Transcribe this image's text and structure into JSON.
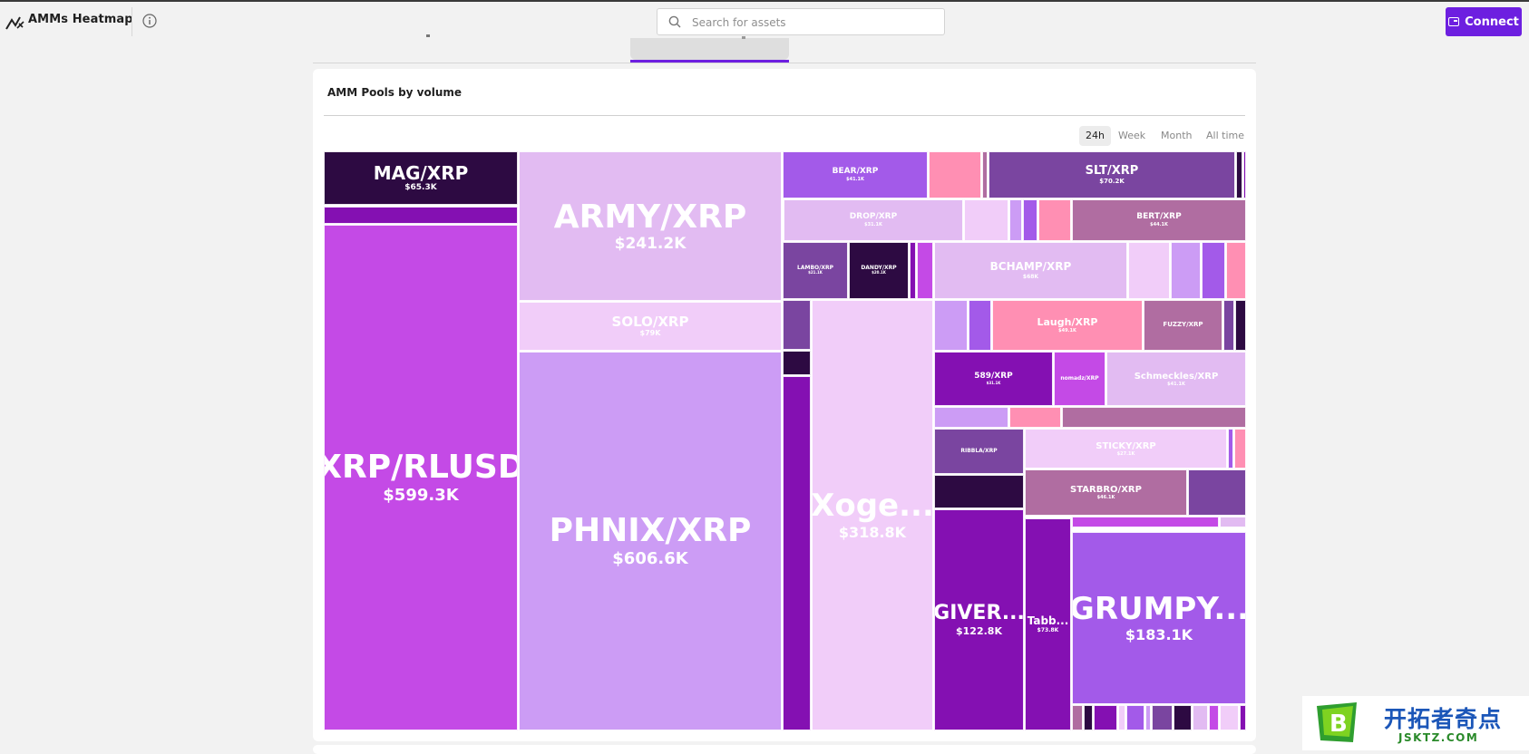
{
  "header": {
    "app_title": "AMMs Heatmap",
    "search_placeholder": "Search for assets",
    "connect_label": "Connect"
  },
  "card": {
    "title": "AMM Pools by volume",
    "time_ranges": [
      "24h",
      "Week",
      "Month",
      "All time"
    ],
    "selected_range": "24h"
  },
  "colors": {
    "accent": "#6d1fe0",
    "dark": "#2d0a42",
    "purple": "#c44ae6",
    "violet": "#a35ae9",
    "lavender": "#cc9cf5",
    "pale_lavender": "#e2bbf2",
    "light_pink": "#f1cdf9",
    "pink": "#ff8fb3",
    "plum": "#b06da1",
    "deep_violet": "#7a45a0",
    "deep_purple": "#8410b2"
  },
  "chart_data": {
    "type": "treemap",
    "title": "AMM Pools by volume",
    "period": "24h",
    "unit": "USD",
    "pools": [
      {
        "id": "mag",
        "name": "MAG/XRP",
        "value": "$65.3K",
        "color": "#2d0a42"
      },
      {
        "id": "p1",
        "name": "",
        "value": "",
        "color": "#8410b2"
      },
      {
        "id": "xrprlusd",
        "name": "XRP/RLUSD",
        "value": "$599.3K",
        "color": "#c44ae6"
      },
      {
        "id": "army",
        "name": "ARMY/XRP",
        "value": "$241.2K",
        "color": "#e2bbf2"
      },
      {
        "id": "solo",
        "name": "SOLO/XRP",
        "value": "$79K",
        "color": "#f1cdf9"
      },
      {
        "id": "phnix",
        "name": "PHNIX/XRP",
        "value": "$606.6K",
        "color": "#cc9cf5"
      },
      {
        "id": "bear",
        "name": "BEAR/XRP",
        "value": "$41.1K",
        "color": "#a35ae9"
      },
      {
        "id": "p2",
        "name": "",
        "value": "",
        "color": "#ff8fb3"
      },
      {
        "id": "p3",
        "name": "",
        "value": "",
        "color": "#b06da1"
      },
      {
        "id": "slt",
        "name": "SLT/XRP",
        "value": "$70.2K",
        "color": "#7a45a0"
      },
      {
        "id": "p4",
        "name": "",
        "value": "",
        "color": "#2d0a42"
      },
      {
        "id": "p5",
        "name": "",
        "value": "",
        "color": "#8410b2"
      },
      {
        "id": "drop",
        "name": "DROP/XRP",
        "value": "$31.1K",
        "color": "#e2bbf2"
      },
      {
        "id": "p6",
        "name": "",
        "value": "",
        "color": "#f1cdf9"
      },
      {
        "id": "p7",
        "name": "",
        "value": "",
        "color": "#cc9cf5"
      },
      {
        "id": "p8",
        "name": "",
        "value": "",
        "color": "#a35ae9"
      },
      {
        "id": "p9",
        "name": "",
        "value": "",
        "color": "#ff8fb3"
      },
      {
        "id": "bert",
        "name": "BERT/XRP",
        "value": "$44.1K",
        "color": "#b06da1"
      },
      {
        "id": "lambo",
        "name": "LAMBO/XRP",
        "value": "$21.1K",
        "color": "#7a45a0"
      },
      {
        "id": "dandy",
        "name": "DANDY/XRP",
        "value": "$20.1K",
        "color": "#2d0a42"
      },
      {
        "id": "p10",
        "name": "",
        "value": "",
        "color": "#8410b2"
      },
      {
        "id": "p11",
        "name": "",
        "value": "",
        "color": "#c44ae6"
      },
      {
        "id": "bchamp",
        "name": "BCHAMP/XRP",
        "value": "$68K",
        "color": "#e2bbf2"
      },
      {
        "id": "p12",
        "name": "",
        "value": "",
        "color": "#f1cdf9"
      },
      {
        "id": "p13",
        "name": "",
        "value": "",
        "color": "#cc9cf5"
      },
      {
        "id": "p14",
        "name": "",
        "value": "",
        "color": "#a35ae9"
      },
      {
        "id": "p15",
        "name": "",
        "value": "",
        "color": "#ff8fb3"
      },
      {
        "id": "p16",
        "name": "",
        "value": "",
        "color": "#7a45a0"
      },
      {
        "id": "p17",
        "name": "",
        "value": "",
        "color": "#2d0a42"
      },
      {
        "id": "p18",
        "name": "",
        "value": "",
        "color": "#8410b2"
      },
      {
        "id": "xoge",
        "name": "Xoge...",
        "value": "$318.8K",
        "color": "#f1cdf9"
      },
      {
        "id": "p19",
        "name": "",
        "value": "",
        "color": "#cc9cf5"
      },
      {
        "id": "p20",
        "name": "",
        "value": "",
        "color": "#a35ae9"
      },
      {
        "id": "laugh",
        "name": "Laugh/XRP",
        "value": "$49.1K",
        "color": "#ff8fb3"
      },
      {
        "id": "fuzzy",
        "name": "FUZZY/XRP",
        "value": "",
        "color": "#b06da1"
      },
      {
        "id": "p21",
        "name": "",
        "value": "",
        "color": "#7a45a0"
      },
      {
        "id": "p22",
        "name": "",
        "value": "",
        "color": "#2d0a42"
      },
      {
        "id": "589",
        "name": "589/XRP",
        "value": "$31.1K",
        "color": "#8410b2"
      },
      {
        "id": "nomadz",
        "name": "nomadz/XRP",
        "value": "",
        "color": "#c44ae6"
      },
      {
        "id": "schmeckles",
        "name": "Schmeckles/XRP",
        "value": "$41.1K",
        "color": "#e2bbf2"
      },
      {
        "id": "p23",
        "name": "",
        "value": "",
        "color": "#cc9cf5"
      },
      {
        "id": "p24",
        "name": "",
        "value": "",
        "color": "#ff8fb3"
      },
      {
        "id": "p25",
        "name": "",
        "value": "",
        "color": "#b06da1"
      },
      {
        "id": "ribbla",
        "name": "RIBBLA/XRP",
        "value": "",
        "color": "#7a45a0"
      },
      {
        "id": "sticky",
        "name": "STICKY/XRP",
        "value": "$27.1K",
        "color": "#f1cdf9"
      },
      {
        "id": "p26",
        "name": "",
        "value": "",
        "color": "#a35ae9"
      },
      {
        "id": "p27",
        "name": "",
        "value": "",
        "color": "#ff8fb3"
      },
      {
        "id": "p28",
        "name": "",
        "value": "",
        "color": "#2d0a42"
      },
      {
        "id": "starbro",
        "name": "STARBRO/XRP",
        "value": "$46.1K",
        "color": "#b06da1"
      },
      {
        "id": "p29",
        "name": "",
        "value": "",
        "color": "#7a45a0"
      },
      {
        "id": "giver",
        "name": "GIVER...",
        "value": "$122.8K",
        "color": "#8410b2"
      },
      {
        "id": "tabb",
        "name": "Tabb...",
        "value": "$73.8K",
        "color": "#8410b2"
      },
      {
        "id": "p30",
        "name": "",
        "value": "",
        "color": "#c44ae6"
      },
      {
        "id": "p31",
        "name": "",
        "value": "",
        "color": "#e2bbf2"
      },
      {
        "id": "grumpy",
        "name": "GRUMPY...",
        "value": "$183.1K",
        "color": "#a35ae9"
      }
    ],
    "small_pools_colors": [
      "#b06da1",
      "#2d0a42",
      "#8410b2",
      "#f1cdf9",
      "#a35ae9",
      "#cc9cf5",
      "#7a45a0",
      "#2d0a42",
      "#e2bbf2",
      "#c44ae6",
      "#f1cdf9",
      "#8410b2"
    ]
  },
  "watermark": {
    "brand": "开拓者奇点",
    "url": "JSKTZ.COM",
    "logo_letter": "B"
  }
}
